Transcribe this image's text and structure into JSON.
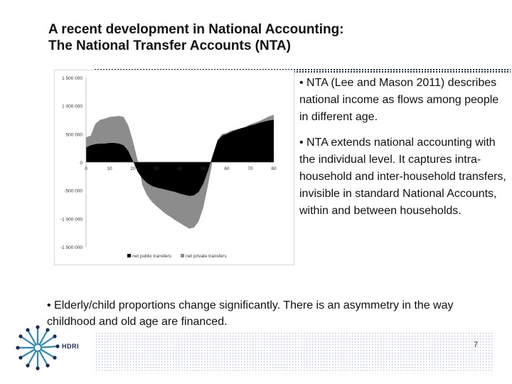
{
  "slide": {
    "title_line1": "A recent development in National Accounting:",
    "title_line2": "The National Transfer Accounts (NTA)",
    "bullet1": "• NTA (Lee and Mason 2011) describes national income as flows among people in different age.",
    "bullet2": "• NTA extends national accounting with the individual level. It captures intra-household and inter-household  transfers, invisible in standard National Accounts, within and between households.",
    "bottom_text": "• Elderly/child proportions change significantly. There is an asymmetry in the way childhood and old age are financed.",
    "logo_text": "HDRI",
    "page_number": "7"
  },
  "colors": {
    "public": "#000000",
    "private": "#8c8c8c",
    "accent": "#1b2b5e"
  },
  "chart_data": {
    "type": "area",
    "x_tick_labels": [
      "0",
      "10",
      "20",
      "30",
      "40",
      "50",
      "60",
      "70",
      "80"
    ],
    "y_tick_labels": [
      "1 500 000",
      "1 000 000",
      "500 000",
      "0",
      "-500 000",
      "-1 000 000",
      "-1 500 000"
    ],
    "ylim": [
      -1500000,
      1500000
    ],
    "xlim": [
      0,
      80
    ],
    "legend_position": "bottom",
    "x": [
      0,
      2,
      4,
      6,
      8,
      10,
      12,
      14,
      16,
      18,
      20,
      22,
      24,
      26,
      28,
      30,
      32,
      34,
      36,
      38,
      40,
      42,
      44,
      46,
      48,
      50,
      52,
      54,
      56,
      58,
      60,
      62,
      64,
      66,
      68,
      70,
      72,
      74,
      76,
      78,
      80
    ],
    "series": [
      {
        "name": "net public transfers",
        "values": [
          260000,
          300000,
          320000,
          330000,
          330000,
          340000,
          340000,
          330000,
          300000,
          200000,
          20000,
          -170000,
          -290000,
          -370000,
          -420000,
          -450000,
          -470000,
          -490000,
          -510000,
          -530000,
          -560000,
          -580000,
          -600000,
          -590000,
          -530000,
          -380000,
          -150000,
          120000,
          380000,
          470000,
          500000,
          540000,
          570000,
          600000,
          620000,
          650000,
          670000,
          700000,
          720000,
          740000,
          750000
        ]
      },
      {
        "name": "net private transfers",
        "values": [
          180000,
          170000,
          360000,
          420000,
          440000,
          460000,
          470000,
          490000,
          500000,
          450000,
          350000,
          200000,
          -120000,
          -220000,
          -280000,
          -330000,
          -380000,
          -430000,
          -460000,
          -500000,
          -520000,
          -550000,
          -580000,
          -570000,
          -520000,
          -420000,
          -250000,
          -80000,
          10000,
          30000,
          20000,
          20000,
          10000,
          0,
          10000,
          20000,
          30000,
          30000,
          50000,
          70000,
          90000
        ]
      }
    ]
  }
}
